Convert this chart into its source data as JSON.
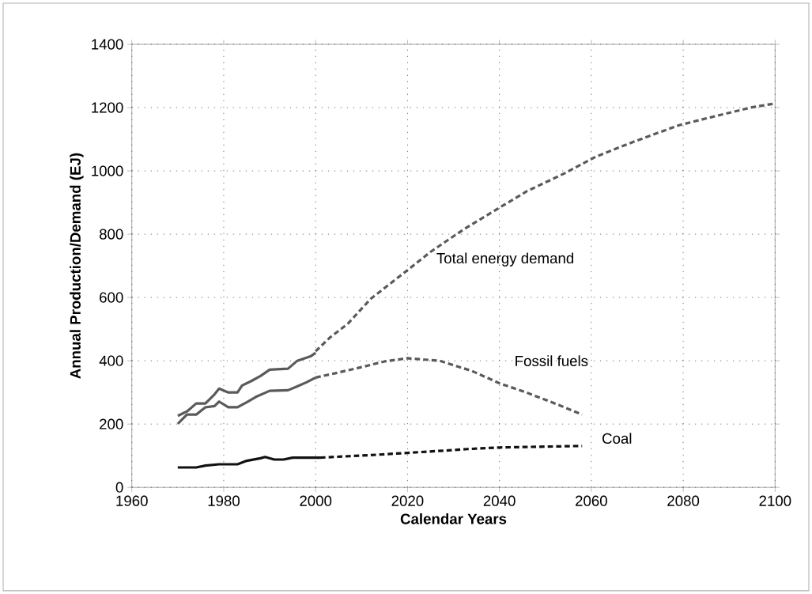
{
  "chart_data": {
    "type": "line",
    "xlabel": "Calendar Years",
    "ylabel": "Annual Production/Demand (EJ)",
    "xlim": [
      1960,
      2100
    ],
    "ylim": [
      0,
      1400
    ],
    "xticks": [
      1960,
      1980,
      2000,
      2020,
      2040,
      2060,
      2080,
      2100
    ],
    "yticks": [
      0,
      200,
      400,
      600,
      800,
      1000,
      1200,
      1400
    ],
    "grid": true,
    "legend": false,
    "marker": "none",
    "series": [
      {
        "color": "#5a5a5a",
        "line_style": "solid",
        "x": [
          1970,
          1972,
          1974,
          1976,
          1978,
          1979,
          1981,
          1983,
          1984,
          1986,
          1988,
          1990,
          1994,
          1996,
          1999,
          2000
        ],
        "values": [
          226,
          240,
          265,
          265,
          294,
          312,
          300,
          300,
          322,
          336,
          352,
          372,
          375,
          400,
          415,
          425
        ]
      },
      {
        "name": "Total energy demand",
        "color": "#5a5a5a",
        "line_style": "dashed",
        "x": [
          2000,
          2003,
          2007,
          2012,
          2019,
          2025,
          2032,
          2039,
          2046,
          2054,
          2061,
          2069,
          2079,
          2087,
          2095,
          2100
        ],
        "values": [
          430,
          472,
          517,
          596,
          675,
          744,
          813,
          875,
          936,
          991,
          1045,
          1091,
          1144,
          1173,
          1201,
          1213
        ]
      },
      {
        "color": "#5a5a5a",
        "line_style": "solid",
        "x": [
          1970,
          1972,
          1974,
          1976,
          1978,
          1979,
          1981,
          1983,
          1985,
          1987,
          1990,
          1994,
          1996,
          1998,
          2000
        ],
        "values": [
          201,
          230,
          230,
          253,
          257,
          271,
          253,
          253,
          269,
          286,
          305,
          307,
          319,
          332,
          347
        ]
      },
      {
        "name": "Fossil fuels",
        "color": "#5a5a5a",
        "line_style": "dashed",
        "x": [
          2000,
          2005,
          2010,
          2015,
          2020,
          2027,
          2034,
          2040,
          2046,
          2053,
          2058
        ],
        "values": [
          347,
          363,
          380,
          398,
          408,
          400,
          368,
          329,
          299,
          260,
          230
        ]
      },
      {
        "color": "#111111",
        "line_style": "solid",
        "x": [
          1970,
          1974,
          1976,
          1979,
          1983,
          1985,
          1988,
          1989,
          1991,
          1993,
          1995,
          2001
        ],
        "values": [
          63,
          63,
          69,
          73,
          73,
          84,
          92,
          96,
          88,
          88,
          94,
          94
        ]
      },
      {
        "name": "Coal",
        "color": "#111111",
        "line_style": "dashed",
        "x": [
          2001,
          2012,
          2020,
          2029,
          2033,
          2040,
          2058
        ],
        "values": [
          94,
          102,
          109,
          117,
          121,
          126,
          131
        ]
      }
    ]
  }
}
